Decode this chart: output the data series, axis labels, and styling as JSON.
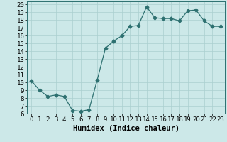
{
  "x": [
    0,
    1,
    2,
    3,
    4,
    5,
    6,
    7,
    8,
    9,
    10,
    11,
    12,
    13,
    14,
    15,
    16,
    17,
    18,
    19,
    20,
    21,
    22,
    23
  ],
  "y": [
    10.2,
    9.0,
    8.2,
    8.4,
    8.2,
    6.4,
    6.3,
    6.5,
    10.3,
    14.4,
    15.3,
    16.0,
    17.2,
    17.3,
    19.7,
    18.3,
    18.2,
    18.2,
    17.9,
    19.2,
    19.3,
    17.9,
    17.2,
    17.2
  ],
  "xlabel": "Humidex (Indice chaleur)",
  "xlim": [
    -0.5,
    23.5
  ],
  "ylim": [
    6,
    20.4
  ],
  "yticks": [
    6,
    7,
    8,
    9,
    10,
    11,
    12,
    13,
    14,
    15,
    16,
    17,
    18,
    19,
    20
  ],
  "xticks": [
    0,
    1,
    2,
    3,
    4,
    5,
    6,
    7,
    8,
    9,
    10,
    11,
    12,
    13,
    14,
    15,
    16,
    17,
    18,
    19,
    20,
    21,
    22,
    23
  ],
  "line_color": "#2d7070",
  "marker": "D",
  "marker_size": 2.5,
  "background_color": "#cce8e8",
  "grid_color": "#aacfcf",
  "label_fontsize": 7.5,
  "tick_fontsize": 6.5
}
